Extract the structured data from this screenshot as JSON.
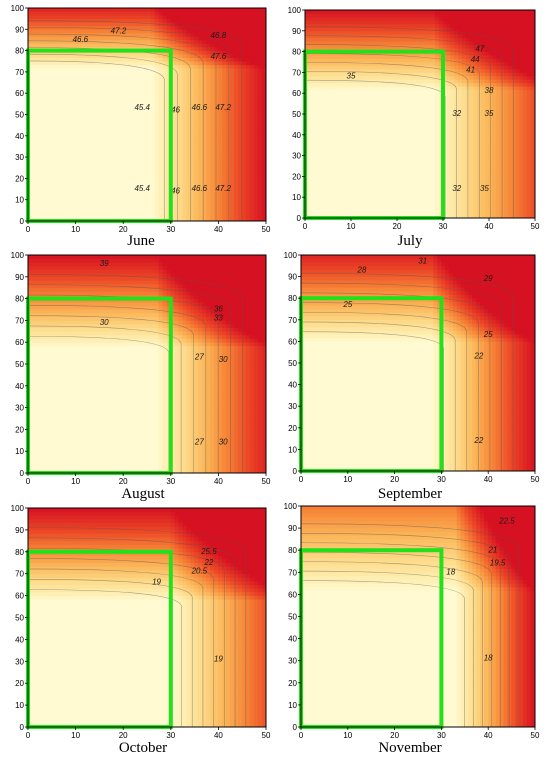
{
  "figure": {
    "title": ""
  },
  "chart_data": [
    {
      "type": "heatmap",
      "month": "June",
      "xlim": [
        0,
        50
      ],
      "ylim": [
        0,
        100
      ],
      "xticks": [
        "0",
        "10",
        "20",
        "30",
        "40",
        "50"
      ],
      "yticks": [
        "0",
        "10",
        "20",
        "30",
        "40",
        "50",
        "60",
        "70",
        "80",
        "90",
        "100"
      ],
      "highlight_rect": {
        "x": [
          0,
          30
        ],
        "y": [
          0,
          80
        ]
      },
      "field": {
        "cold": 45.2,
        "top": 48.2,
        "right": 48.4,
        "cold_w": 26,
        "cold_h": 72
      },
      "contour_labels": [
        {
          "text": "47.2",
          "x": 19,
          "y": 88
        },
        {
          "text": "46.6",
          "x": 11,
          "y": 84
        },
        {
          "text": "46.8",
          "x": 40,
          "y": 86
        },
        {
          "text": "47.6",
          "x": 40,
          "y": 76
        },
        {
          "text": "45.4",
          "x": 24,
          "y": 52
        },
        {
          "text": "46",
          "x": 31,
          "y": 51
        },
        {
          "text": "46.6",
          "x": 36,
          "y": 52
        },
        {
          "text": "47.2",
          "x": 41,
          "y": 52
        },
        {
          "text": "45.4",
          "x": 24,
          "y": 14
        },
        {
          "text": "46",
          "x": 31,
          "y": 13
        },
        {
          "text": "46.6",
          "x": 36,
          "y": 14
        },
        {
          "text": "47.2",
          "x": 41,
          "y": 14
        }
      ]
    },
    {
      "type": "heatmap",
      "month": "July",
      "xlim": [
        0,
        50
      ],
      "ylim": [
        0,
        100
      ],
      "xticks": [
        "0",
        "10",
        "20",
        "30",
        "40",
        "50"
      ],
      "yticks": [
        "0",
        "10",
        "20",
        "30",
        "40",
        "50",
        "60",
        "70",
        "80",
        "90",
        "100"
      ],
      "highlight_rect": {
        "x": [
          0,
          30
        ],
        "y": [
          0,
          80
        ]
      },
      "field": {
        "cold": 30,
        "top": 48,
        "right": 44,
        "cold_w": 28,
        "cold_h": 62
      },
      "contour_labels": [
        {
          "text": "47",
          "x": 38,
          "y": 80
        },
        {
          "text": "44",
          "x": 37,
          "y": 75
        },
        {
          "text": "41",
          "x": 36,
          "y": 70
        },
        {
          "text": "35",
          "x": 10,
          "y": 67
        },
        {
          "text": "38",
          "x": 40,
          "y": 60
        },
        {
          "text": "32",
          "x": 33,
          "y": 49
        },
        {
          "text": "35",
          "x": 40,
          "y": 49
        },
        {
          "text": "32",
          "x": 33,
          "y": 13
        },
        {
          "text": "35",
          "x": 39,
          "y": 13
        }
      ]
    },
    {
      "type": "heatmap",
      "month": "August",
      "xlim": [
        0,
        50
      ],
      "ylim": [
        0,
        100
      ],
      "xticks": [
        "0",
        "10",
        "20",
        "30",
        "40",
        "50"
      ],
      "yticks": [
        "0",
        "10",
        "20",
        "30",
        "40",
        "50",
        "60",
        "70",
        "80",
        "90",
        "100"
      ],
      "highlight_rect": {
        "x": [
          0,
          30
        ],
        "y": [
          0,
          80
        ]
      },
      "field": {
        "cold": 26,
        "top": 40,
        "right": 39,
        "cold_w": 27,
        "cold_h": 58
      },
      "contour_labels": [
        {
          "text": "39",
          "x": 16,
          "y": 95
        },
        {
          "text": "36",
          "x": 40,
          "y": 74
        },
        {
          "text": "33",
          "x": 40,
          "y": 70
        },
        {
          "text": "30",
          "x": 16,
          "y": 68
        },
        {
          "text": "27",
          "x": 36,
          "y": 52
        },
        {
          "text": "30",
          "x": 41,
          "y": 51
        },
        {
          "text": "27",
          "x": 36,
          "y": 13
        },
        {
          "text": "30",
          "x": 41,
          "y": 13
        }
      ]
    },
    {
      "type": "heatmap",
      "month": "September",
      "xlim": [
        0,
        50
      ],
      "ylim": [
        0,
        100
      ],
      "xticks": [
        "0",
        "10",
        "20",
        "30",
        "40",
        "50"
      ],
      "yticks": [
        "0",
        "10",
        "20",
        "30",
        "40",
        "50",
        "60",
        "70",
        "80",
        "90",
        "100"
      ],
      "highlight_rect": {
        "x": [
          0,
          30
        ],
        "y": [
          0,
          80
        ]
      },
      "field": {
        "cold": 20,
        "top": 32,
        "right": 33,
        "cold_w": 28,
        "cold_h": 60
      },
      "contour_labels": [
        {
          "text": "31",
          "x": 26,
          "y": 96
        },
        {
          "text": "28",
          "x": 13,
          "y": 92
        },
        {
          "text": "29",
          "x": 40,
          "y": 88
        },
        {
          "text": "25",
          "x": 10,
          "y": 76
        },
        {
          "text": "25",
          "x": 40,
          "y": 62
        },
        {
          "text": "22",
          "x": 38,
          "y": 52
        },
        {
          "text": "22",
          "x": 38,
          "y": 13
        }
      ]
    },
    {
      "type": "heatmap",
      "month": "October",
      "xlim": [
        0,
        50
      ],
      "ylim": [
        0,
        100
      ],
      "xticks": [
        "0",
        "10",
        "20",
        "30",
        "40",
        "50"
      ],
      "yticks": [
        "0",
        "10",
        "20",
        "30",
        "40",
        "50",
        "60",
        "70",
        "80",
        "90",
        "100"
      ],
      "highlight_rect": {
        "x": [
          0,
          30
        ],
        "y": [
          0,
          80
        ]
      },
      "field": {
        "cold": 17,
        "top": 27.5,
        "right": 25,
        "cold_w": 30,
        "cold_h": 58
      },
      "contour_labels": [
        {
          "text": "25.5",
          "x": 38,
          "y": 79
        },
        {
          "text": "22",
          "x": 38,
          "y": 74
        },
        {
          "text": "20.5",
          "x": 36,
          "y": 70
        },
        {
          "text": "19",
          "x": 27,
          "y": 65
        },
        {
          "text": "19",
          "x": 40,
          "y": 30
        }
      ]
    },
    {
      "type": "heatmap",
      "month": "November",
      "xlim": [
        0,
        50
      ],
      "ylim": [
        0,
        100
      ],
      "xticks": [
        "0",
        "10",
        "20",
        "30",
        "40",
        "50"
      ],
      "yticks": [
        "0",
        "10",
        "20",
        "30",
        "40",
        "50",
        "60",
        "70",
        "80",
        "90",
        "100"
      ],
      "highlight_rect": {
        "x": [
          0,
          30
        ],
        "y": [
          0,
          80
        ]
      },
      "field": {
        "cold": 16.5,
        "top": 21,
        "right": 23.5,
        "cold_w": 33,
        "cold_h": 62
      },
      "contour_labels": [
        {
          "text": "22.5",
          "x": 44,
          "y": 92
        },
        {
          "text": "21",
          "x": 41,
          "y": 79
        },
        {
          "text": "19.5",
          "x": 42,
          "y": 73
        },
        {
          "text": "18",
          "x": 32,
          "y": 69
        },
        {
          "text": "18",
          "x": 40,
          "y": 30
        }
      ]
    }
  ]
}
